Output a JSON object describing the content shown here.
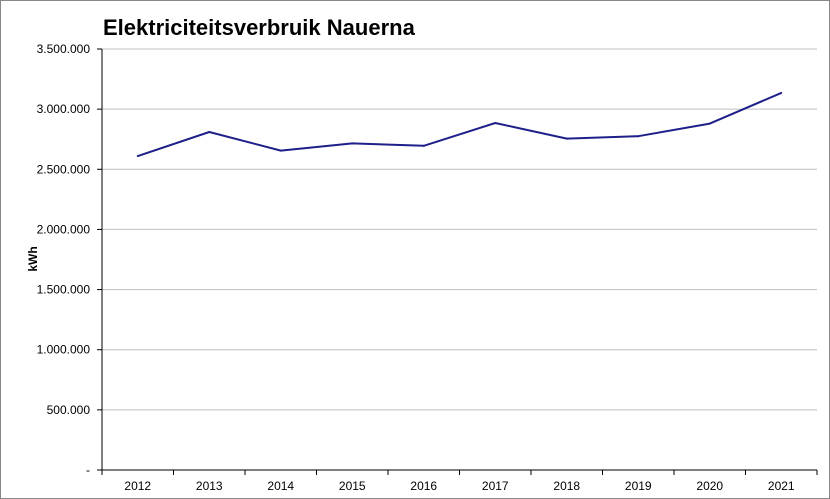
{
  "chart_data": {
    "type": "line",
    "title": "Elektriciteitsverbruik Nauerna",
    "xlabel": "",
    "ylabel": "kWh",
    "categories": [
      "2012",
      "2013",
      "2014",
      "2015",
      "2016",
      "2017",
      "2018",
      "2019",
      "2020",
      "2021"
    ],
    "series": [
      {
        "color": "#1f1f8a",
        "values": [
          2610000,
          2810000,
          2655000,
          2715000,
          2695000,
          2885000,
          2755000,
          2775000,
          2880000,
          3135000
        ]
      }
    ],
    "ylim": [
      0,
      3500000
    ],
    "yticks": [
      0,
      500000,
      1000000,
      1500000,
      2000000,
      2500000,
      3000000,
      3500000
    ],
    "ytick_labels": [
      "-",
      "500.000",
      "1.000.000",
      "1.500.000",
      "2.000.000",
      "2.500.000",
      "3.000.000",
      "3.500.000"
    ],
    "grid": true,
    "gridline_color": "#c0c0c0"
  }
}
